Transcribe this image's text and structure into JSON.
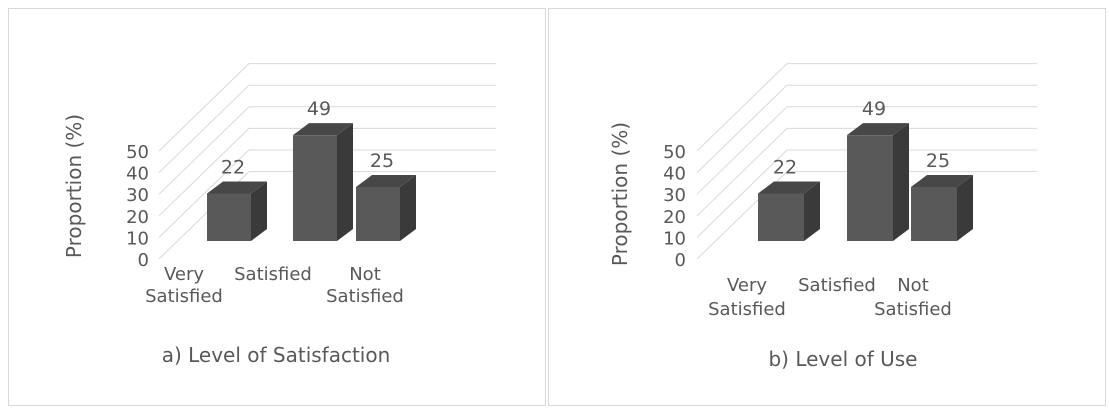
{
  "chart_data": [
    {
      "type": "bar",
      "title": "a) Level of Satisfaction",
      "ylabel": "Proportion (%)",
      "xlabel": "",
      "categories": [
        [
          "Very",
          "Satisfied"
        ],
        [
          "Satisfied"
        ],
        [
          "Not",
          "Satisfied"
        ]
      ],
      "values": [
        22,
        49,
        25
      ],
      "yticks": [
        0,
        10,
        20,
        30,
        40,
        50
      ],
      "ylim": [
        0,
        50
      ],
      "grid": true,
      "legend": "none",
      "style": "3d-column",
      "colors": {
        "bar_front": "#595959",
        "bar_side": "#3a3a3a",
        "bar_top": "#474747",
        "grid": "#d9d9d9",
        "text": "#595959"
      }
    },
    {
      "type": "bar",
      "title": "b) Level of Use",
      "ylabel": "Proportion (%)",
      "xlabel": "",
      "categories": [
        [
          "Very",
          "Satisfied"
        ],
        [
          "Satisfied"
        ],
        [
          "Not",
          "Satisfied"
        ]
      ],
      "values": [
        22,
        49,
        25
      ],
      "yticks": [
        0,
        10,
        20,
        30,
        40,
        50
      ],
      "ylim": [
        0,
        50
      ],
      "grid": true,
      "legend": "none",
      "style": "3d-column",
      "colors": {
        "bar_front": "#595959",
        "bar_side": "#3a3a3a",
        "bar_top": "#474747",
        "grid": "#d9d9d9",
        "text": "#595959"
      }
    }
  ]
}
